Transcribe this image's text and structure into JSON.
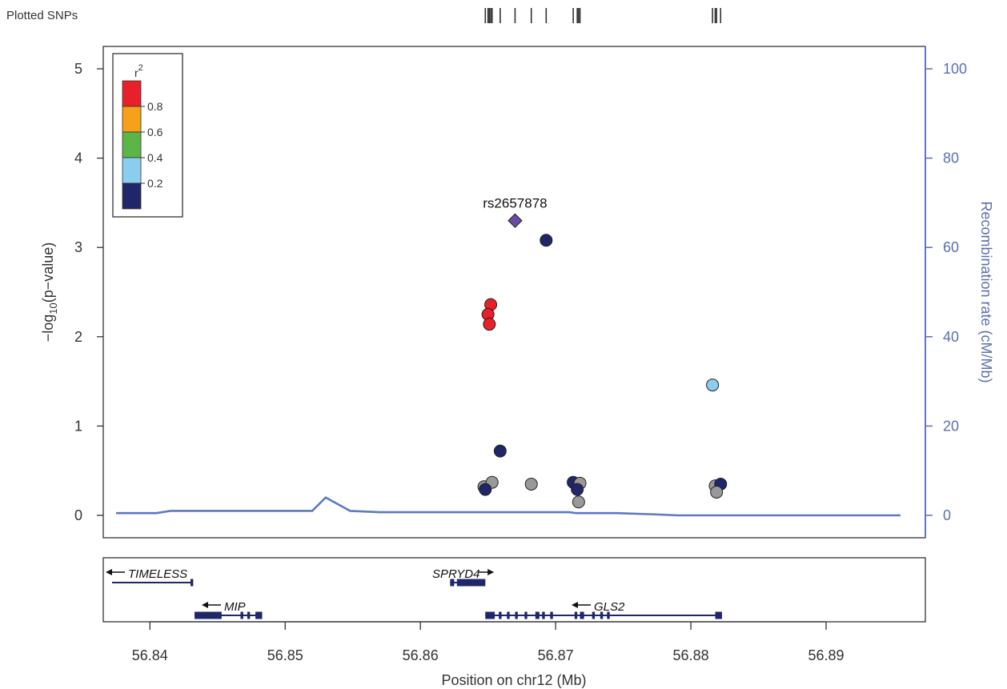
{
  "plotted_snps_label": "Plotted SNPs",
  "colors": {
    "r2_0.8_1.0": "#e8202a",
    "r2_0.6_0.8": "#f7a11a",
    "r2_0.4_0.6": "#5cb547",
    "r2_0.2_0.4": "#8acdef",
    "r2_0.0_0.2": "#1f2669",
    "no_ld": "#999999",
    "index_snp": "#6b4aa3",
    "recombination_line": "#5f78c0",
    "gene": "#1f2669"
  },
  "chart_data": {
    "type": "scatter",
    "xlabel": "Position on chr12 (Mb)",
    "ylabel_main": "log",
    "ylabel_sub": "10",
    "ylabel_rest": "(p−value)",
    "ylabel_prefix": "−",
    "y2label": "Recombination rate (cM/Mb)",
    "xlim": [
      56.8372,
      56.8958
    ],
    "ylim": [
      0,
      5.2
    ],
    "y2lim": [
      0,
      104
    ],
    "x_ticks": [
      56.84,
      56.85,
      56.86,
      56.87,
      56.88,
      56.89
    ],
    "x_tick_labels": [
      "56.84",
      "56.85",
      "56.86",
      "56.87",
      "56.88",
      "56.89"
    ],
    "y_ticks": [
      0,
      1,
      2,
      3,
      4,
      5
    ],
    "y_tick_labels": [
      "0",
      "1",
      "2",
      "3",
      "4",
      "5"
    ],
    "y2_ticks": [
      0,
      20,
      40,
      60,
      80,
      100
    ],
    "y2_tick_labels": [
      "0",
      "20",
      "40",
      "60",
      "80",
      "100"
    ],
    "legend": {
      "title": "r",
      "title_sup": "2",
      "placement": "top-left",
      "breaks": [
        "0.8",
        "0.6",
        "0.4",
        "0.2"
      ]
    },
    "index_snp": {
      "name": "rs2657878",
      "x": 56.867,
      "y": 3.3
    },
    "points": [
      {
        "x": 56.8652,
        "y": 2.36,
        "r2": "0.8-1.0"
      },
      {
        "x": 56.865,
        "y": 2.25,
        "r2": "0.8-1.0"
      },
      {
        "x": 56.8651,
        "y": 2.14,
        "r2": "0.8-1.0"
      },
      {
        "x": 56.8693,
        "y": 3.08,
        "r2": "0.0-0.2"
      },
      {
        "x": 56.8816,
        "y": 1.46,
        "r2": "0.2-0.4"
      },
      {
        "x": 56.8659,
        "y": 0.72,
        "r2": "0.0-0.2"
      },
      {
        "x": 56.8647,
        "y": 0.32,
        "r2": "none"
      },
      {
        "x": 56.8653,
        "y": 0.37,
        "r2": "none"
      },
      {
        "x": 56.8648,
        "y": 0.29,
        "r2": "0.0-0.2"
      },
      {
        "x": 56.8682,
        "y": 0.35,
        "r2": "none"
      },
      {
        "x": 56.8713,
        "y": 0.37,
        "r2": "0.0-0.2"
      },
      {
        "x": 56.8718,
        "y": 0.36,
        "r2": "none"
      },
      {
        "x": 56.8716,
        "y": 0.29,
        "r2": "0.0-0.2"
      },
      {
        "x": 56.8717,
        "y": 0.15,
        "r2": "none"
      },
      {
        "x": 56.8818,
        "y": 0.33,
        "r2": "none"
      },
      {
        "x": 56.8822,
        "y": 0.35,
        "r2": "0.0-0.2"
      },
      {
        "x": 56.8819,
        "y": 0.26,
        "r2": "none"
      }
    ],
    "recombination": {
      "x": [
        56.8375,
        56.8405,
        56.8415,
        56.8505,
        56.852,
        56.853,
        56.8548,
        56.857,
        56.865,
        56.871,
        56.8715,
        56.8745,
        56.8775,
        56.879,
        56.8955
      ],
      "y": [
        0.5,
        0.5,
        1.0,
        1.0,
        1.0,
        4.0,
        1.0,
        0.7,
        0.7,
        0.7,
        0.5,
        0.5,
        0.2,
        0.0,
        0.0
      ]
    },
    "plotted_snp_ticks": [
      56.8648,
      56.865,
      56.8651,
      56.8652,
      56.8653,
      56.8659,
      56.867,
      56.8682,
      56.8693,
      56.8713,
      56.8716,
      56.8717,
      56.8718,
      56.8816,
      56.8818,
      56.8819,
      56.8822
    ],
    "genes": [
      {
        "name": "TIMELESS",
        "direction": "left",
        "start": 56.8372,
        "end": 56.8431,
        "row": 0,
        "exons": [
          [
            56.843,
            56.8432
          ]
        ]
      },
      {
        "name": "SPRYD4",
        "direction": "right",
        "start": 56.8622,
        "end": 56.8648,
        "row": 0,
        "exons": [
          [
            56.8622,
            56.8625
          ],
          [
            56.8627,
            56.8648
          ]
        ]
      },
      {
        "name": "MIP",
        "direction": "left",
        "start": 56.8433,
        "end": 56.8483,
        "row": 1,
        "exons": [
          [
            56.8433,
            56.8453
          ],
          [
            56.8467,
            56.8469
          ],
          [
            56.8472,
            56.8474
          ],
          [
            56.8478,
            56.8483
          ]
        ]
      },
      {
        "name": "GLS2",
        "direction": "left",
        "start": 56.8648,
        "end": 56.8823,
        "row": 1,
        "exons": [
          [
            56.8648,
            56.8655
          ],
          [
            56.8658,
            56.866
          ],
          [
            56.8664,
            56.8666
          ],
          [
            56.867,
            56.8672
          ],
          [
            56.8677,
            56.8679
          ],
          [
            56.8685,
            56.8688
          ],
          [
            56.869,
            56.8692
          ],
          [
            56.8696,
            56.8698
          ],
          [
            56.8714,
            56.8716
          ],
          [
            56.8718,
            56.8721
          ],
          [
            56.8727,
            56.8729
          ],
          [
            56.8733,
            56.8735
          ],
          [
            56.8738,
            56.874
          ],
          [
            56.8818,
            56.8823
          ]
        ]
      }
    ]
  }
}
